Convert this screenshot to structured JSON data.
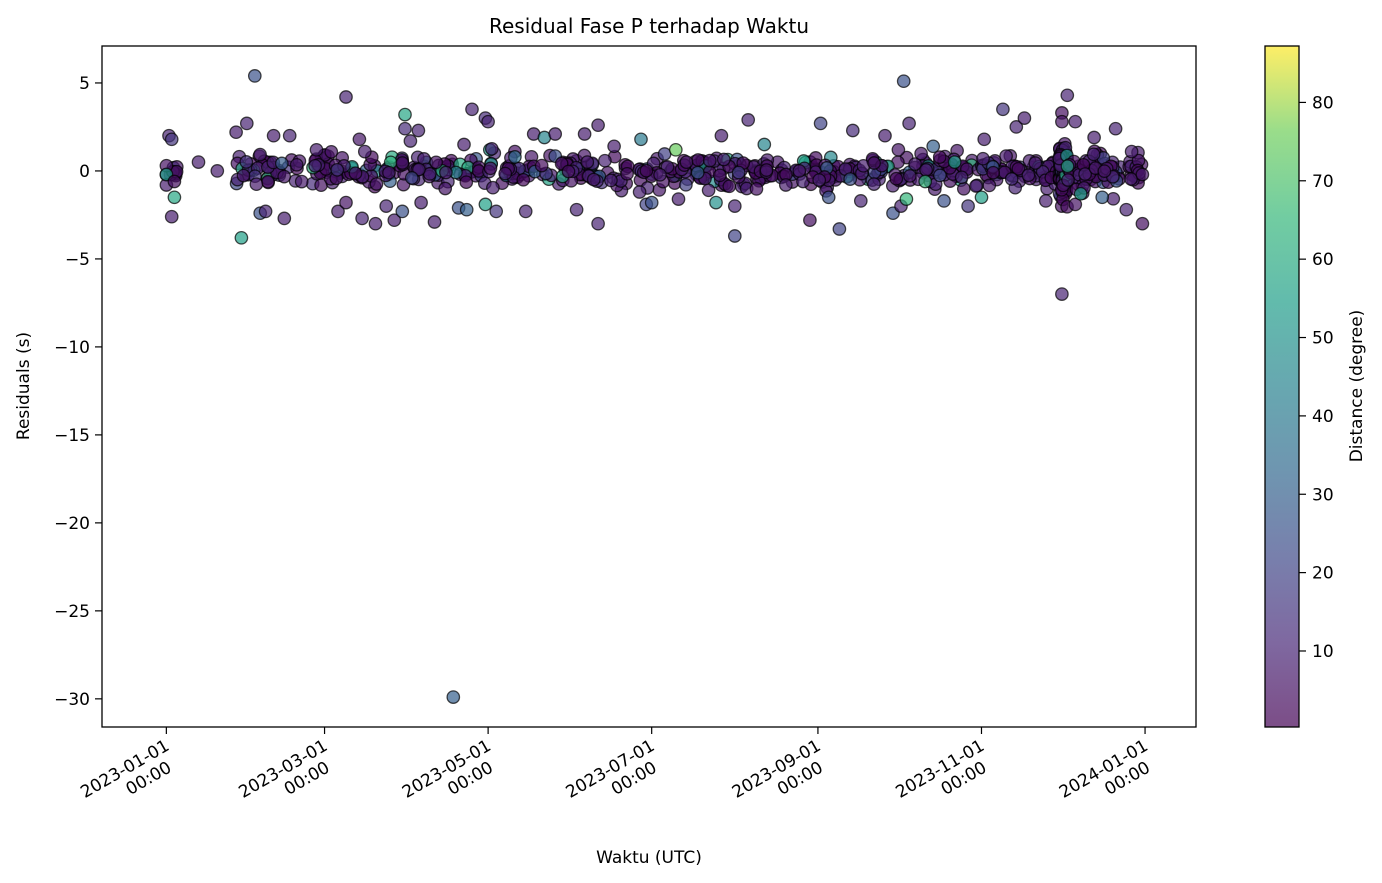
{
  "chart_data": {
    "type": "scatter",
    "title": "Residual Fase P terhadap Waktu",
    "xlabel": "Waktu (UTC)",
    "ylabel": "Residuals (s)",
    "x_type": "datetime",
    "xlim": [
      "2022-12-08",
      "2024-01-20"
    ],
    "ylim": [
      -31.6,
      7.1
    ],
    "x_ticks": [
      {
        "date": "2023-01-01",
        "line1": "2023-01-01",
        "line2": "00:00"
      },
      {
        "date": "2023-03-01",
        "line1": "2023-03-01",
        "line2": "00:00"
      },
      {
        "date": "2023-05-01",
        "line1": "2023-05-01",
        "line2": "00:00"
      },
      {
        "date": "2023-07-01",
        "line1": "2023-07-01",
        "line2": "00:00"
      },
      {
        "date": "2023-09-01",
        "line1": "2023-09-01",
        "line2": "00:00"
      },
      {
        "date": "2023-11-01",
        "line1": "2023-11-01",
        "line2": "00:00"
      },
      {
        "date": "2024-01-01",
        "line1": "2024-01-01",
        "line2": "00:00"
      }
    ],
    "y_ticks": [
      5,
      0,
      -5,
      -10,
      -15,
      -20,
      -25,
      -30
    ],
    "y_tick_labels": [
      "5",
      "0",
      "−5",
      "−10",
      "−15",
      "−20",
      "−25",
      "−30"
    ],
    "grid": false,
    "colorbar": {
      "label": "Distance (degree)",
      "colormap": "viridis",
      "range": [
        0.3,
        87.2
      ],
      "ticks": [
        10,
        20,
        30,
        40,
        50,
        60,
        70,
        80
      ],
      "tick_labels": [
        "10",
        "20",
        "30",
        "40",
        "50",
        "60",
        "70",
        "80"
      ],
      "alpha": 0.7
    },
    "marker": {
      "edge_color": "#000000",
      "alpha": 0.7
    },
    "points": [
      {
        "t": "2023-01-01",
        "y": 0.3,
        "d": 5
      },
      {
        "t": "2023-01-01",
        "y": -0.8,
        "d": 8
      },
      {
        "t": "2023-01-01",
        "y": -0.2,
        "d": 55
      },
      {
        "t": "2023-01-02",
        "y": 2.0,
        "d": 10
      },
      {
        "t": "2023-01-03",
        "y": 1.8,
        "d": 15
      },
      {
        "t": "2023-01-03",
        "y": -2.6,
        "d": 8
      },
      {
        "t": "2023-01-04",
        "y": -1.5,
        "d": 58
      },
      {
        "t": "2023-01-04",
        "y": -0.6,
        "d": 4
      },
      {
        "t": "2023-01-13",
        "y": 0.5,
        "d": 8
      },
      {
        "t": "2023-01-20",
        "y": 0.0,
        "d": 8
      },
      {
        "t": "2023-01-27",
        "y": 2.2,
        "d": 8
      },
      {
        "t": "2023-01-29",
        "y": -3.8,
        "d": 55
      },
      {
        "t": "2023-01-31",
        "y": 2.7,
        "d": 10
      },
      {
        "t": "2023-02-03",
        "y": 5.4,
        "d": 25
      },
      {
        "t": "2023-02-05",
        "y": -2.4,
        "d": 25
      },
      {
        "t": "2023-02-07",
        "y": -2.3,
        "d": 10
      },
      {
        "t": "2023-02-10",
        "y": 2.0,
        "d": 8
      },
      {
        "t": "2023-02-14",
        "y": -2.7,
        "d": 8
      },
      {
        "t": "2023-02-16",
        "y": 2.0,
        "d": 10
      },
      {
        "t": "2023-02-26",
        "y": 1.2,
        "d": 8
      },
      {
        "t": "2023-03-06",
        "y": -2.3,
        "d": 8
      },
      {
        "t": "2023-03-09",
        "y": -1.8,
        "d": 5
      },
      {
        "t": "2023-03-09",
        "y": 4.2,
        "d": 10
      },
      {
        "t": "2023-03-14",
        "y": 1.8,
        "d": 6
      },
      {
        "t": "2023-03-15",
        "y": -2.7,
        "d": 10
      },
      {
        "t": "2023-03-16",
        "y": 1.1,
        "d": 8
      },
      {
        "t": "2023-03-20",
        "y": -3.0,
        "d": 8
      },
      {
        "t": "2023-03-24",
        "y": -2.0,
        "d": 10
      },
      {
        "t": "2023-03-27",
        "y": -2.8,
        "d": 8
      },
      {
        "t": "2023-03-30",
        "y": -2.3,
        "d": 25
      },
      {
        "t": "2023-03-31",
        "y": 3.2,
        "d": 58
      },
      {
        "t": "2023-03-31",
        "y": 2.4,
        "d": 12
      },
      {
        "t": "2023-04-02",
        "y": 1.7,
        "d": 10
      },
      {
        "t": "2023-04-05",
        "y": 2.3,
        "d": 10
      },
      {
        "t": "2023-04-06",
        "y": -1.8,
        "d": 8
      },
      {
        "t": "2023-04-11",
        "y": -2.9,
        "d": 8
      },
      {
        "t": "2023-04-15",
        "y": -1.0,
        "d": 6
      },
      {
        "t": "2023-04-18",
        "y": -29.9,
        "d": 30
      },
      {
        "t": "2023-04-20",
        "y": -2.1,
        "d": 25
      },
      {
        "t": "2023-04-22",
        "y": 1.5,
        "d": 8
      },
      {
        "t": "2023-04-23",
        "y": -2.2,
        "d": 30
      },
      {
        "t": "2023-04-25",
        "y": 3.5,
        "d": 10
      },
      {
        "t": "2023-04-30",
        "y": 3.0,
        "d": 12
      },
      {
        "t": "2023-04-30",
        "y": -1.9,
        "d": 55
      },
      {
        "t": "2023-05-01",
        "y": 2.8,
        "d": 10
      },
      {
        "t": "2023-05-04",
        "y": -2.3,
        "d": 15
      },
      {
        "t": "2023-05-11",
        "y": 0.8,
        "d": 35
      },
      {
        "t": "2023-05-15",
        "y": -2.3,
        "d": 10
      },
      {
        "t": "2023-05-18",
        "y": 2.1,
        "d": 8
      },
      {
        "t": "2023-05-22",
        "y": 1.9,
        "d": 45
      },
      {
        "t": "2023-05-26",
        "y": 2.1,
        "d": 8
      },
      {
        "t": "2023-06-03",
        "y": -2.2,
        "d": 10
      },
      {
        "t": "2023-06-06",
        "y": 2.1,
        "d": 8
      },
      {
        "t": "2023-06-11",
        "y": -3.0,
        "d": 10
      },
      {
        "t": "2023-06-11",
        "y": 2.6,
        "d": 8
      },
      {
        "t": "2023-06-17",
        "y": 1.4,
        "d": 8
      },
      {
        "t": "2023-06-27",
        "y": 1.8,
        "d": 40
      },
      {
        "t": "2023-06-29",
        "y": -1.9,
        "d": 20
      },
      {
        "t": "2023-07-01",
        "y": -1.8,
        "d": 25
      },
      {
        "t": "2023-07-10",
        "y": 1.2,
        "d": 75
      },
      {
        "t": "2023-07-11",
        "y": -1.6,
        "d": 8
      },
      {
        "t": "2023-07-14",
        "y": 0.5,
        "d": 6
      },
      {
        "t": "2023-07-25",
        "y": -1.8,
        "d": 50
      },
      {
        "t": "2023-07-27",
        "y": 2.0,
        "d": 8
      },
      {
        "t": "2023-08-01",
        "y": -3.7,
        "d": 20
      },
      {
        "t": "2023-08-01",
        "y": -2.0,
        "d": 10
      },
      {
        "t": "2023-08-06",
        "y": 2.9,
        "d": 10
      },
      {
        "t": "2023-08-12",
        "y": 1.5,
        "d": 45
      },
      {
        "t": "2023-08-20",
        "y": -0.8,
        "d": 8
      },
      {
        "t": "2023-08-29",
        "y": -2.8,
        "d": 4
      },
      {
        "t": "2023-09-02",
        "y": 2.7,
        "d": 20
      },
      {
        "t": "2023-09-05",
        "y": -1.5,
        "d": 25
      },
      {
        "t": "2023-09-09",
        "y": -3.3,
        "d": 20
      },
      {
        "t": "2023-09-14",
        "y": 2.3,
        "d": 12
      },
      {
        "t": "2023-09-17",
        "y": -1.7,
        "d": 10
      },
      {
        "t": "2023-09-26",
        "y": 2.0,
        "d": 8
      },
      {
        "t": "2023-09-29",
        "y": -2.4,
        "d": 25
      },
      {
        "t": "2023-10-01",
        "y": 1.2,
        "d": 6
      },
      {
        "t": "2023-10-02",
        "y": -2.0,
        "d": 10
      },
      {
        "t": "2023-10-03",
        "y": 5.1,
        "d": 25
      },
      {
        "t": "2023-10-04",
        "y": -1.6,
        "d": 65
      },
      {
        "t": "2023-10-05",
        "y": 2.7,
        "d": 10
      },
      {
        "t": "2023-10-11",
        "y": -0.6,
        "d": 65
      },
      {
        "t": "2023-10-14",
        "y": 1.4,
        "d": 30
      },
      {
        "t": "2023-10-18",
        "y": -1.7,
        "d": 25
      },
      {
        "t": "2023-10-22",
        "y": 0.5,
        "d": 55
      },
      {
        "t": "2023-10-27",
        "y": -2.0,
        "d": 15
      },
      {
        "t": "2023-11-01",
        "y": -1.5,
        "d": 55
      },
      {
        "t": "2023-11-02",
        "y": 1.8,
        "d": 8
      },
      {
        "t": "2023-11-09",
        "y": 3.5,
        "d": 15
      },
      {
        "t": "2023-11-14",
        "y": 2.5,
        "d": 10
      },
      {
        "t": "2023-11-17",
        "y": 3.0,
        "d": 8
      },
      {
        "t": "2023-11-25",
        "y": -1.7,
        "d": 8
      },
      {
        "t": "2023-12-01",
        "y": 3.3,
        "d": 4
      },
      {
        "t": "2023-12-01",
        "y": 2.8,
        "d": 5
      },
      {
        "t": "2023-12-01",
        "y": -7.0,
        "d": 10
      },
      {
        "t": "2023-12-03",
        "y": 4.3,
        "d": 10
      },
      {
        "t": "2023-12-06",
        "y": 2.8,
        "d": 8
      },
      {
        "t": "2023-12-06",
        "y": -1.9,
        "d": 5
      },
      {
        "t": "2023-12-08",
        "y": -1.3,
        "d": 55
      },
      {
        "t": "2023-12-13",
        "y": 1.9,
        "d": 8
      },
      {
        "t": "2023-12-16",
        "y": -1.5,
        "d": 30
      },
      {
        "t": "2023-12-21",
        "y": 2.4,
        "d": 10
      },
      {
        "t": "2023-12-25",
        "y": -2.2,
        "d": 10
      },
      {
        "t": "2023-12-27",
        "y": 1.1,
        "d": 8
      },
      {
        "t": "2023-12-31",
        "y": -3.0,
        "d": 4
      },
      {
        "t": "2023-12-31",
        "y": -0.2,
        "d": 6
      }
    ]
  }
}
